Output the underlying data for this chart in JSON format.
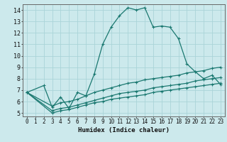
{
  "title": "",
  "xlabel": "Humidex (Indice chaleur)",
  "ylabel": "",
  "background_color": "#cce9ec",
  "grid_color": "#aad4d8",
  "line_color": "#1a7870",
  "ylim": [
    4.7,
    14.5
  ],
  "xlim": [
    -0.5,
    23.5
  ],
  "yticks": [
    5,
    6,
    7,
    8,
    9,
    10,
    11,
    12,
    13,
    14
  ],
  "xticks": [
    0,
    1,
    2,
    3,
    4,
    5,
    6,
    7,
    8,
    9,
    10,
    11,
    12,
    13,
    14,
    15,
    16,
    17,
    18,
    19,
    20,
    21,
    22,
    23
  ],
  "curve1_x": [
    0,
    2,
    3,
    4,
    5,
    6,
    7,
    8,
    9,
    10,
    11,
    12,
    13,
    14,
    15,
    16,
    17,
    18,
    19,
    20,
    21,
    22,
    23
  ],
  "curve1_y": [
    6.8,
    7.4,
    5.5,
    6.4,
    5.4,
    6.8,
    6.5,
    8.4,
    11.0,
    12.5,
    13.5,
    14.2,
    14.0,
    14.2,
    12.5,
    12.6,
    12.5,
    11.5,
    9.3,
    8.6,
    8.0,
    8.3,
    7.5
  ],
  "curve2_x": [
    0,
    3,
    4,
    5,
    6,
    7,
    8,
    9,
    10,
    11,
    12,
    13,
    14,
    15,
    16,
    17,
    18,
    19,
    20,
    21,
    22,
    23
  ],
  "curve2_y": [
    6.8,
    5.6,
    5.9,
    6.0,
    6.2,
    6.5,
    6.8,
    7.0,
    7.2,
    7.4,
    7.6,
    7.7,
    7.9,
    8.0,
    8.1,
    8.2,
    8.3,
    8.5,
    8.6,
    8.7,
    8.9,
    9.0
  ],
  "curve3_x": [
    0,
    3,
    4,
    5,
    6,
    7,
    8,
    9,
    10,
    11,
    12,
    13,
    14,
    15,
    16,
    17,
    18,
    19,
    20,
    21,
    22,
    23
  ],
  "curve3_y": [
    6.8,
    5.2,
    5.4,
    5.5,
    5.7,
    5.9,
    6.1,
    6.3,
    6.5,
    6.7,
    6.8,
    6.9,
    7.0,
    7.2,
    7.3,
    7.4,
    7.5,
    7.6,
    7.8,
    7.9,
    8.0,
    8.1
  ],
  "curve4_x": [
    0,
    3,
    4,
    5,
    6,
    7,
    8,
    9,
    10,
    11,
    12,
    13,
    14,
    15,
    16,
    17,
    18,
    19,
    20,
    21,
    22,
    23
  ],
  "curve4_y": [
    6.8,
    5.0,
    5.2,
    5.3,
    5.5,
    5.7,
    5.9,
    6.0,
    6.2,
    6.3,
    6.4,
    6.5,
    6.6,
    6.8,
    6.9,
    7.0,
    7.1,
    7.2,
    7.3,
    7.4,
    7.5,
    7.6
  ]
}
